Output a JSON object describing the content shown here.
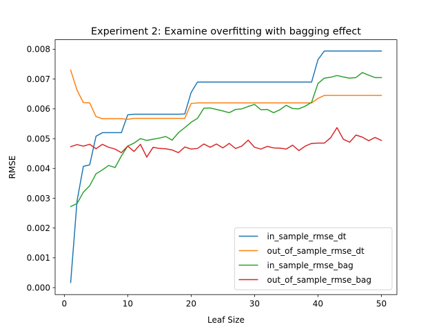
{
  "chart_data": {
    "type": "line",
    "title": "Experiment 2: Examine overfitting with bagging effect",
    "xlabel": "Leaf Size",
    "ylabel": "RMSE",
    "xlim": [
      -1.45,
      52.45
    ],
    "ylim": [
      -0.000234,
      0.00832
    ],
    "xticks": [
      0,
      10,
      20,
      30,
      40,
      50
    ],
    "xtick_labels": [
      "0",
      "10",
      "20",
      "30",
      "40",
      "50"
    ],
    "yticks": [
      0.0,
      0.001,
      0.002,
      0.003,
      0.004,
      0.005,
      0.006,
      0.007,
      0.008
    ],
    "ytick_labels": [
      "0.000",
      "0.001",
      "0.002",
      "0.003",
      "0.004",
      "0.005",
      "0.006",
      "0.007",
      "0.008"
    ],
    "grid": false,
    "legend_position": "lower-right",
    "x": [
      1,
      2,
      3,
      4,
      5,
      6,
      7,
      8,
      9,
      10,
      11,
      12,
      13,
      14,
      15,
      16,
      17,
      18,
      19,
      20,
      21,
      22,
      23,
      24,
      25,
      26,
      27,
      28,
      29,
      30,
      31,
      32,
      33,
      34,
      35,
      36,
      37,
      38,
      39,
      40,
      41,
      42,
      43,
      44,
      45,
      46,
      47,
      48,
      49,
      50
    ],
    "series": [
      {
        "name": "in_sample_rmse_dt",
        "color": "#1f77b4",
        "values": [
          0.00017,
          0.0029,
          0.00407,
          0.00412,
          0.00508,
          0.0052,
          0.0052,
          0.0052,
          0.0052,
          0.0058,
          0.00582,
          0.00582,
          0.00582,
          0.00582,
          0.00582,
          0.00582,
          0.00582,
          0.00582,
          0.00583,
          0.00655,
          0.0069,
          0.0069,
          0.0069,
          0.0069,
          0.0069,
          0.0069,
          0.0069,
          0.0069,
          0.0069,
          0.0069,
          0.0069,
          0.0069,
          0.0069,
          0.0069,
          0.0069,
          0.0069,
          0.0069,
          0.0069,
          0.0069,
          0.00765,
          0.00794,
          0.00794,
          0.00794,
          0.00794,
          0.00794,
          0.00794,
          0.00794,
          0.00794,
          0.00794,
          0.00794
        ]
      },
      {
        "name": "out_of_sample_rmse_dt",
        "color": "#ff7f0e",
        "values": [
          0.0073,
          0.00663,
          0.00621,
          0.0062,
          0.00574,
          0.00567,
          0.00567,
          0.00567,
          0.00567,
          0.00565,
          0.00568,
          0.00568,
          0.00568,
          0.00568,
          0.00568,
          0.00568,
          0.00568,
          0.00568,
          0.00568,
          0.00618,
          0.0062,
          0.0062,
          0.0062,
          0.0062,
          0.0062,
          0.0062,
          0.0062,
          0.0062,
          0.0062,
          0.0062,
          0.0062,
          0.0062,
          0.0062,
          0.0062,
          0.0062,
          0.0062,
          0.0062,
          0.0062,
          0.0062,
          0.00635,
          0.00645,
          0.00645,
          0.00645,
          0.00645,
          0.00645,
          0.00645,
          0.00645,
          0.00645,
          0.00645,
          0.00645
        ]
      },
      {
        "name": "in_sample_rmse_bag",
        "color": "#2ca02c",
        "values": [
          0.00272,
          0.00282,
          0.0032,
          0.00342,
          0.00382,
          0.00395,
          0.0041,
          0.00403,
          0.00442,
          0.00475,
          0.00485,
          0.005,
          0.00494,
          0.00498,
          0.00502,
          0.00507,
          0.00495,
          0.0052,
          0.00537,
          0.00555,
          0.00568,
          0.00602,
          0.00603,
          0.00598,
          0.00593,
          0.00587,
          0.00598,
          0.006,
          0.00608,
          0.00615,
          0.00597,
          0.00598,
          0.00587,
          0.00597,
          0.00612,
          0.00601,
          0.006,
          0.00609,
          0.00622,
          0.00685,
          0.00703,
          0.00706,
          0.00712,
          0.00707,
          0.00703,
          0.00705,
          0.00722,
          0.00713,
          0.00705,
          0.00705
        ]
      },
      {
        "name": "out_of_sample_rmse_bag",
        "color": "#d62728",
        "values": [
          0.00473,
          0.0048,
          0.00475,
          0.00481,
          0.00466,
          0.00481,
          0.00471,
          0.00465,
          0.00453,
          0.00475,
          0.00457,
          0.00481,
          0.00438,
          0.00471,
          0.00467,
          0.00466,
          0.00462,
          0.00453,
          0.00472,
          0.00465,
          0.00467,
          0.00482,
          0.00471,
          0.00482,
          0.00469,
          0.00484,
          0.00467,
          0.00475,
          0.00495,
          0.00471,
          0.00465,
          0.00474,
          0.00469,
          0.00468,
          0.00465,
          0.00478,
          0.0046,
          0.00475,
          0.00484,
          0.00485,
          0.00485,
          0.00503,
          0.00537,
          0.00498,
          0.00488,
          0.00512,
          0.00505,
          0.00493,
          0.00504,
          0.00494
        ]
      }
    ]
  }
}
